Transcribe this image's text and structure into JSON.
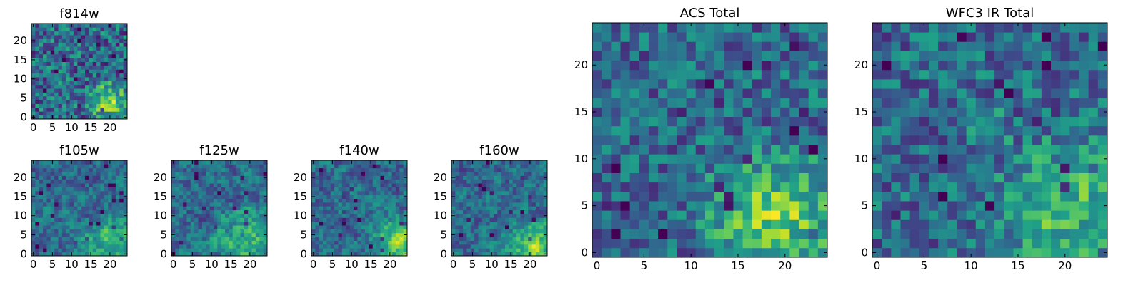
{
  "chart_data": [
    {
      "type": "heatmap",
      "title": "f814w",
      "grid_size": 25,
      "colormap": "viridis",
      "xlim": [
        0,
        24
      ],
      "ylim": [
        0,
        24
      ],
      "xticks": [
        0,
        5,
        10,
        15,
        20
      ],
      "yticks": [
        0,
        5,
        10,
        15,
        20
      ],
      "pattern": "noisy",
      "hotspots": [
        {
          "x": 20,
          "y": 4,
          "r": 5,
          "strength": 0.45
        }
      ]
    },
    {
      "type": "heatmap",
      "title": "f105w",
      "grid_size": 25,
      "colormap": "viridis",
      "xlim": [
        0,
        24
      ],
      "ylim": [
        0,
        24
      ],
      "xticks": [
        0,
        5,
        10,
        15,
        20
      ],
      "yticks": [
        0,
        5,
        10,
        15,
        20
      ],
      "pattern": "smooth",
      "hotspots": [
        {
          "x": 20,
          "y": 3,
          "r": 6,
          "strength": 0.4
        }
      ]
    },
    {
      "type": "heatmap",
      "title": "f125w",
      "grid_size": 25,
      "colormap": "viridis",
      "xlim": [
        0,
        24
      ],
      "ylim": [
        0,
        24
      ],
      "xticks": [
        0,
        5,
        10,
        15,
        20
      ],
      "yticks": [
        0,
        5,
        10,
        15,
        20
      ],
      "pattern": "smooth",
      "hotspots": [
        {
          "x": 19,
          "y": 4,
          "r": 7,
          "strength": 0.35
        }
      ]
    },
    {
      "type": "heatmap",
      "title": "f140w",
      "grid_size": 25,
      "colormap": "viridis",
      "xlim": [
        0,
        24
      ],
      "ylim": [
        0,
        24
      ],
      "xticks": [
        0,
        5,
        10,
        15,
        20
      ],
      "yticks": [
        0,
        5,
        10,
        15,
        20
      ],
      "pattern": "smooth",
      "hotspots": [
        {
          "x": 22,
          "y": 3,
          "r": 6,
          "strength": 0.5
        }
      ]
    },
    {
      "type": "heatmap",
      "title": "f160w",
      "grid_size": 25,
      "colormap": "viridis",
      "xlim": [
        0,
        24
      ],
      "ylim": [
        0,
        24
      ],
      "xticks": [
        0,
        5,
        10,
        15,
        20
      ],
      "yticks": [
        0,
        5,
        10,
        15,
        20
      ],
      "pattern": "smooth",
      "hotspots": [
        {
          "x": 21,
          "y": 2,
          "r": 6,
          "strength": 0.5
        }
      ]
    },
    {
      "type": "heatmap",
      "title": "ACS Total",
      "grid_size": 25,
      "colormap": "viridis",
      "xlim": [
        0,
        24
      ],
      "ylim": [
        0,
        24
      ],
      "xticks": [
        0,
        5,
        10,
        15,
        20
      ],
      "yticks": [
        0,
        5,
        10,
        15,
        20
      ],
      "pattern": "blocky",
      "hotspots": [
        {
          "x": 19,
          "y": 4,
          "r": 6,
          "strength": 0.5
        }
      ]
    },
    {
      "type": "heatmap",
      "title": "WFC3 IR Total",
      "grid_size": 25,
      "colormap": "viridis",
      "xlim": [
        0,
        24
      ],
      "ylim": [
        0,
        24
      ],
      "xticks": [
        0,
        5,
        10,
        15,
        20
      ],
      "yticks": [
        0,
        5,
        10,
        15,
        20
      ],
      "pattern": "blocky",
      "hotspots": [
        {
          "x": 20,
          "y": 5,
          "r": 6,
          "strength": 0.4
        },
        {
          "x": 12,
          "y": 13,
          "r": 2,
          "strength": 0.3
        }
      ]
    }
  ],
  "colors": {
    "viridis": [
      "#440154",
      "#482878",
      "#3e4989",
      "#31688e",
      "#26828e",
      "#1f9e89",
      "#35b779",
      "#6ece58",
      "#b5de2b",
      "#fde725"
    ]
  }
}
